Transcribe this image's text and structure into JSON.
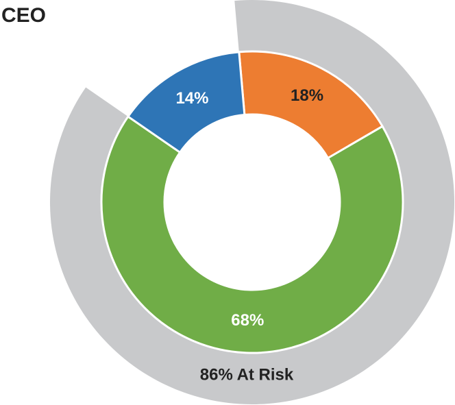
{
  "chart_data": {
    "type": "donut",
    "title": "CEO",
    "values": [
      18,
      68,
      14
    ],
    "value_labels": [
      "18%",
      "68%",
      "14%"
    ],
    "colors": [
      "#ed7d31",
      "#70ad47",
      "#2e75b6"
    ],
    "label_colors": [
      "#222222",
      "#ffffff",
      "#ffffff"
    ],
    "start_angle": -5,
    "outer_ring": {
      "value": 86,
      "value_label": "86% At Risk",
      "color": "#c8c9cb"
    }
  }
}
